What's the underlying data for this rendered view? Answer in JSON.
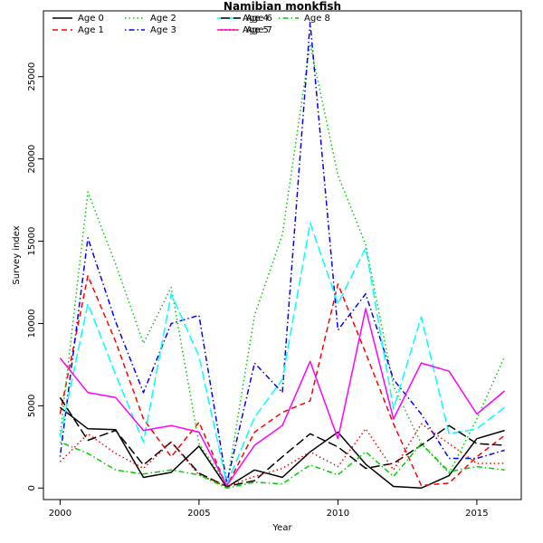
{
  "chart_data": {
    "type": "line",
    "title": "Namibian monkfish",
    "xlabel": "Year",
    "ylabel": "Survey index",
    "xlim": [
      1999.4,
      2016.6
    ],
    "ylim": [
      -700,
      29000
    ],
    "xticks": [
      2000,
      2005,
      2010,
      2015
    ],
    "yticks": [
      0,
      5000,
      10000,
      15000,
      20000,
      25000
    ],
    "grid": false,
    "legend_position": "top-left",
    "x": [
      2000,
      2001,
      2002,
      2003,
      2004,
      2005,
      2006,
      2007,
      2008,
      2009,
      2010,
      2011,
      2012,
      2013,
      2014,
      2015,
      2016
    ],
    "series": [
      {
        "name": "Age 0",
        "color": "#000000",
        "dash": "solid",
        "values": [
          4900,
          3600,
          3550,
          650,
          950,
          2550,
          50,
          1100,
          650,
          2200,
          3400,
          1450,
          100,
          0,
          750,
          3000,
          3500
        ]
      },
      {
        "name": "Age 1",
        "color": "#FF0000",
        "dash": "dashed",
        "values": [
          4500,
          12900,
          8900,
          4200,
          1900,
          4000,
          100,
          3400,
          4600,
          5300,
          12400,
          8200,
          3900,
          150,
          300,
          1900,
          3200
        ]
      },
      {
        "name": "Age 2",
        "color": "#00CD00",
        "dash": "dotted",
        "values": [
          3200,
          18000,
          13600,
          8800,
          12200,
          2700,
          200,
          10500,
          15400,
          27000,
          19000,
          14800,
          6200,
          2700,
          900,
          4200,
          8000
        ]
      },
      {
        "name": "Age 3",
        "color": "#0000FF",
        "dash": "dotdash",
        "values": [
          1900,
          15200,
          10100,
          5800,
          10000,
          10500,
          300,
          7600,
          5800,
          28300,
          9600,
          11800,
          6600,
          4500,
          1800,
          1800,
          2300
        ]
      },
      {
        "name": "Age 4",
        "color": "#00FFFF",
        "dash": "longdash",
        "values": [
          3100,
          11200,
          6900,
          2800,
          11800,
          8000,
          250,
          4300,
          6600,
          16100,
          11200,
          14600,
          4800,
          10400,
          3300,
          3600,
          4900
        ]
      },
      {
        "name": "Age 5",
        "color": "#FF00FF",
        "dash": "solid",
        "values": [
          7900,
          5800,
          5500,
          3500,
          3800,
          3400,
          150,
          2600,
          3800,
          7700,
          3000,
          10900,
          4200,
          7600,
          7100,
          4500,
          5900
        ]
      },
      {
        "name": "Age 6",
        "color": "#000000",
        "dash": "longdash",
        "values": [
          5500,
          2900,
          3500,
          1400,
          2800,
          900,
          100,
          450,
          1900,
          3300,
          2500,
          1200,
          1500,
          2600,
          3800,
          2700,
          2600
        ]
      },
      {
        "name": "Age 7",
        "color": "#FF0000",
        "dash": "dotted",
        "values": [
          1600,
          3300,
          2100,
          1200,
          2800,
          800,
          100,
          700,
          1200,
          2200,
          1300,
          3600,
          1100,
          3900,
          2700,
          1500,
          1500
        ]
      },
      {
        "name": "Age 8",
        "color": "#00CD00",
        "dash": "dotdash",
        "values": [
          2800,
          2100,
          1100,
          850,
          1100,
          800,
          0,
          350,
          250,
          1400,
          800,
          2200,
          700,
          2700,
          1000,
          1300,
          1100
        ]
      }
    ]
  }
}
